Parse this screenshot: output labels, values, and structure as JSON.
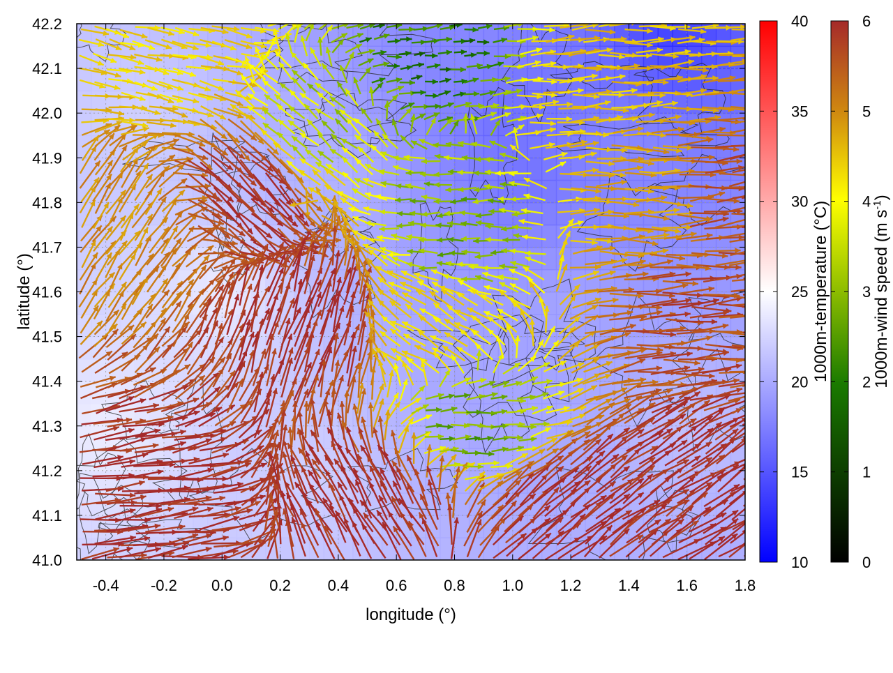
{
  "chart_data": {
    "type": "vector-field",
    "xlabel": "longitude (°)",
    "ylabel": "latitude (°)",
    "xlim": [
      -0.5,
      1.8
    ],
    "ylim": [
      41.0,
      42.2
    ],
    "x_ticks": [
      "-0.4",
      "-0.2",
      "0.0",
      "0.2",
      "0.4",
      "0.6",
      "0.8",
      "1.0",
      "1.2",
      "1.4",
      "1.6",
      "1.8"
    ],
    "x_tick_values": [
      -0.4,
      -0.2,
      0.0,
      0.2,
      0.4,
      0.6,
      0.8,
      1.0,
      1.2,
      1.4,
      1.6,
      1.8
    ],
    "y_ticks": [
      "41.0",
      "41.1",
      "41.2",
      "41.3",
      "41.4",
      "41.5",
      "41.6",
      "41.7",
      "41.8",
      "41.9",
      "42.0",
      "42.1",
      "42.2"
    ],
    "y_tick_values": [
      41.0,
      41.1,
      41.2,
      41.3,
      41.4,
      41.5,
      41.6,
      41.7,
      41.8,
      41.9,
      42.0,
      42.1,
      42.2
    ],
    "grid": true,
    "temperature_colorbar": {
      "label": "1000m-temperature (°C)",
      "range": [
        10,
        40
      ],
      "ticks": [
        "10",
        "15",
        "20",
        "25",
        "30",
        "35",
        "40"
      ],
      "tick_values": [
        10,
        15,
        20,
        25,
        30,
        35,
        40
      ],
      "colors": [
        "#0000ff",
        "#ffffff",
        "#ff0000"
      ]
    },
    "wind_colorbar": {
      "label_main": "1000m-wind speed (m s",
      "label_sup": "-1",
      "label_end": ")",
      "range": [
        0,
        6
      ],
      "ticks": [
        "0",
        "1",
        "2",
        "3",
        "4",
        "5",
        "6"
      ],
      "tick_values": [
        0,
        1,
        2,
        3,
        4,
        5,
        6
      ],
      "colors": [
        "#000000",
        "#1a7a00",
        "#ffff00",
        "#d08a10",
        "#a52a2a"
      ]
    },
    "temperature_regions": [
      {
        "lon": 1.55,
        "lat": 42.17,
        "temp": 12
      },
      {
        "lon": 1.0,
        "lat": 42.0,
        "temp": 15
      },
      {
        "lon": 1.05,
        "lat": 41.85,
        "temp": 15.5
      },
      {
        "lon": 0.85,
        "lat": 42.15,
        "temp": 17
      },
      {
        "lon": 1.4,
        "lat": 41.9,
        "temp": 17
      },
      {
        "lon": 1.2,
        "lat": 41.55,
        "temp": 19
      },
      {
        "lon": 0.9,
        "lat": 41.35,
        "temp": 19
      },
      {
        "lon": 0.35,
        "lat": 41.85,
        "temp": 20
      },
      {
        "lon": 1.6,
        "lat": 41.3,
        "temp": 21
      },
      {
        "lon": 0.0,
        "lat": 41.6,
        "temp": 24
      },
      {
        "lon": -0.4,
        "lat": 41.3,
        "temp": 24
      },
      {
        "lon": 0.3,
        "lat": 41.2,
        "temp": 22
      },
      {
        "lon": -0.3,
        "lat": 42.0,
        "temp": 22
      }
    ],
    "wind_regions": [
      {
        "lon": -0.3,
        "lat": 41.1,
        "u": 1.0,
        "v": 0.12,
        "speed": 6
      },
      {
        "lon": 0.3,
        "lat": 41.5,
        "u": 0.3,
        "v": 0.95,
        "speed": 6
      },
      {
        "lon": 0.1,
        "lat": 41.85,
        "u": 0.6,
        "v": -0.6,
        "speed": 6
      },
      {
        "lon": -0.4,
        "lat": 41.75,
        "u": 0.4,
        "v": 0.6,
        "speed": 4.5
      },
      {
        "lon": 0.3,
        "lat": 41.95,
        "u": -0.6,
        "v": 0.5,
        "speed": 2.5
      },
      {
        "lon": -0.25,
        "lat": 42.15,
        "u": 0.9,
        "v": -0.2,
        "speed": 3.5
      },
      {
        "lon": 0.7,
        "lat": 42.15,
        "u": 0.95,
        "v": 0.1,
        "speed": 1.5
      },
      {
        "lon": 1.3,
        "lat": 42.1,
        "u": 1.0,
        "v": 0.05,
        "speed": 3.8
      },
      {
        "lon": 0.85,
        "lat": 41.75,
        "u": -1.0,
        "v": 0.0,
        "speed": 2.2
      },
      {
        "lon": 1.45,
        "lat": 41.8,
        "u": 1.0,
        "v": 0.0,
        "speed": 4.2
      },
      {
        "lon": 1.6,
        "lat": 41.55,
        "u": 1.0,
        "v": 0.05,
        "speed": 5.5
      },
      {
        "lon": 0.75,
        "lat": 41.5,
        "u": -0.7,
        "v": 0.4,
        "speed": 3.5
      },
      {
        "lon": 0.85,
        "lat": 41.3,
        "u": 0.9,
        "v": 0.05,
        "speed": 2.0
      },
      {
        "lon": 0.55,
        "lat": 41.1,
        "u": -0.5,
        "v": 0.8,
        "speed": 6
      },
      {
        "lon": 1.1,
        "lat": 41.1,
        "u": 0.7,
        "v": 0.6,
        "speed": 6
      },
      {
        "lon": 1.55,
        "lat": 41.15,
        "u": 0.8,
        "v": 0.55,
        "speed": 6
      },
      {
        "lon": 1.7,
        "lat": 41.8,
        "u": 1.0,
        "v": 0.1,
        "speed": 5.5
      }
    ]
  }
}
